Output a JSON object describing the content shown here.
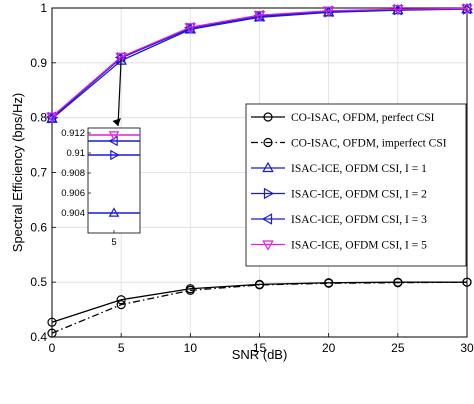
{
  "chart_data": {
    "type": "line",
    "xlabel": "SNR (dB)",
    "ylabel": "Spectral Efficiency (bps/Hz)",
    "xlim": [
      0,
      30
    ],
    "ylim": [
      0.4,
      1.0
    ],
    "x_ticks": [
      "0",
      "5",
      "10",
      "15",
      "20",
      "25",
      "30"
    ],
    "y_ticks": [
      "0.4",
      "0.5",
      "0.6",
      "0.7",
      "0.8",
      "0.9",
      "1"
    ],
    "grid": true,
    "legend_placement": "right",
    "x": [
      0,
      5,
      10,
      15,
      20,
      25,
      30
    ],
    "series": [
      {
        "name": "CO-ISAC, OFDM, perfect CSI",
        "color": "#000000",
        "dash": "solid",
        "marker": "circle",
        "values": [
          0.427,
          0.468,
          0.488,
          0.496,
          0.499,
          0.5,
          0.5
        ]
      },
      {
        "name": "CO-ISAC, OFDM, imperfect CSI",
        "color": "#000000",
        "dash": "dashdot",
        "marker": "circle",
        "values": [
          0.407,
          0.459,
          0.485,
          0.495,
          0.498,
          0.499,
          0.5
        ]
      },
      {
        "name": "ISAC-ICE, OFDM CSI, I = 1",
        "color": "#1a1ad8",
        "dash": "solid",
        "marker": "triangle-up",
        "values": [
          0.798,
          0.904,
          0.961,
          0.983,
          0.992,
          0.996,
          0.998
        ]
      },
      {
        "name": "ISAC-ICE, OFDM CSI, I = 2",
        "color": "#1a1ad8",
        "dash": "solid",
        "marker": "triangle-right",
        "values": [
          0.8,
          0.909,
          0.963,
          0.985,
          0.993,
          0.997,
          0.998
        ]
      },
      {
        "name": "ISAC-ICE, OFDM CSI, I = 3",
        "color": "#1a1ad8",
        "dash": "solid",
        "marker": "triangle-left",
        "values": [
          0.801,
          0.91,
          0.964,
          0.986,
          0.994,
          0.997,
          0.999
        ]
      },
      {
        "name": "ISAC-ICE, OFDM CSI, I = 5",
        "color": "#e020e0",
        "dash": "solid",
        "marker": "triangle-down",
        "values": [
          0.802,
          0.911,
          0.965,
          0.987,
          0.995,
          0.998,
          0.999
        ]
      }
    ],
    "legend_labels": [
      "CO-ISAC, OFDM, perfect CSI",
      "CO-ISAC, OFDM, imperfect CSI",
      "ISAC-ICE, OFDM CSI, I = 1",
      "ISAC-ICE, OFDM CSI, I = 2",
      "ISAC-ICE, OFDM CSI, I = 3",
      "ISAC-ICE, OFDM CSI, I = 5"
    ],
    "inset": {
      "x": 5,
      "ylim": [
        0.902,
        0.9125
      ],
      "y_ticks": [
        "0.912",
        "0.91",
        "0.908",
        "0.906",
        "0.904"
      ],
      "x_ticks": [
        "5"
      ],
      "values": [
        0.904,
        0.9098,
        0.9112,
        0.9118
      ]
    }
  }
}
